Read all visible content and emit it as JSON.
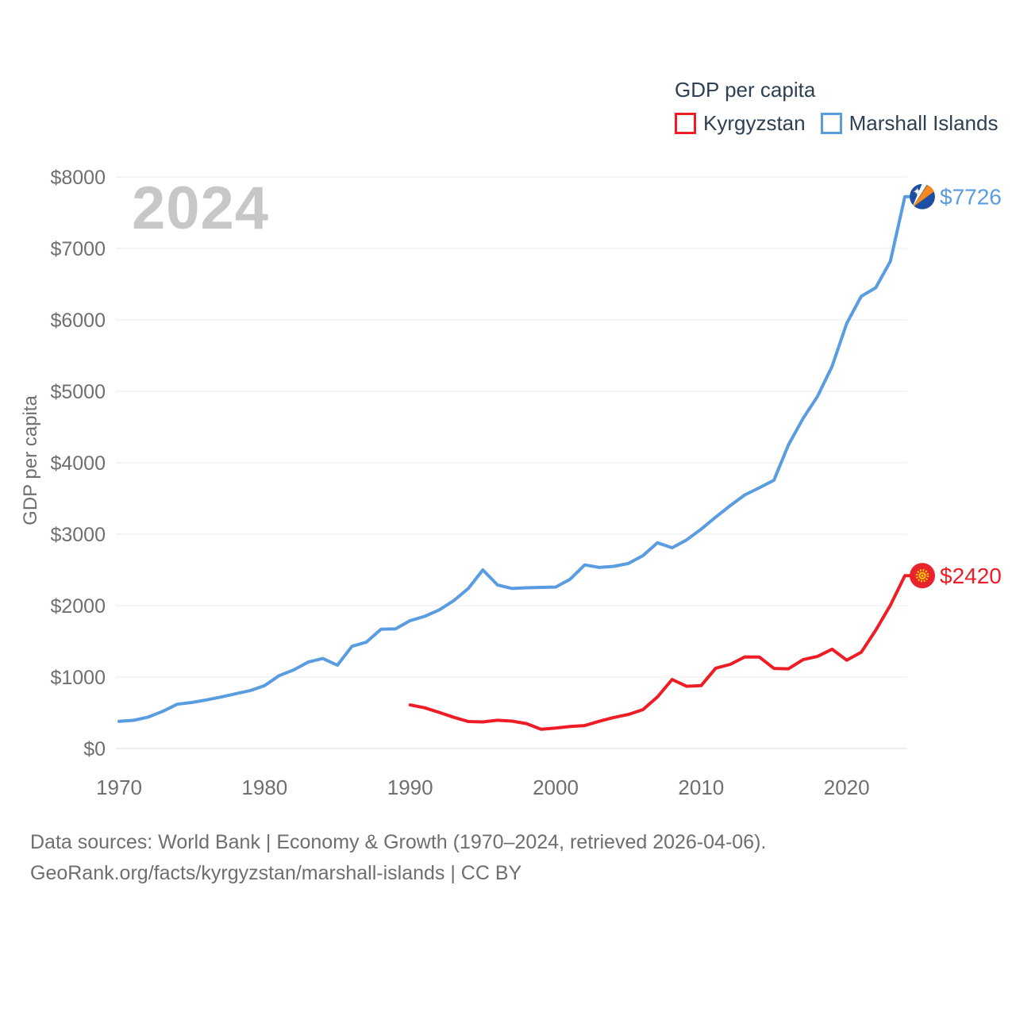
{
  "page": {
    "background": "#ffffff"
  },
  "legend": {
    "title": "GDP per capita",
    "items": [
      {
        "label": "Kyrgyzstan",
        "color": "#ee1c25"
      },
      {
        "label": "Marshall Islands",
        "color": "#5a9ce0"
      }
    ]
  },
  "watermark": "2024",
  "chart_data": {
    "type": "line",
    "title": "GDP per capita",
    "xlabel": "",
    "ylabel": "GDP per capita",
    "xlim": [
      1970,
      2024
    ],
    "ylim": [
      0,
      8000
    ],
    "grid": "horizontal",
    "legend_position": "top-right",
    "y_ticks": [
      {
        "value": 0,
        "label": "$0"
      },
      {
        "value": 1000,
        "label": "$1000"
      },
      {
        "value": 2000,
        "label": "$2000"
      },
      {
        "value": 3000,
        "label": "$3000"
      },
      {
        "value": 4000,
        "label": "$4000"
      },
      {
        "value": 5000,
        "label": "$5000"
      },
      {
        "value": 6000,
        "label": "$6000"
      },
      {
        "value": 7000,
        "label": "$7000"
      },
      {
        "value": 8000,
        "label": "$8000"
      }
    ],
    "x_ticks": [
      {
        "value": 1970,
        "label": "1970"
      },
      {
        "value": 1980,
        "label": "1980"
      },
      {
        "value": 1990,
        "label": "1990"
      },
      {
        "value": 2000,
        "label": "2000"
      },
      {
        "value": 2010,
        "label": "2010"
      },
      {
        "value": 2020,
        "label": "2020"
      }
    ],
    "series": [
      {
        "name": "Kyrgyzstan",
        "color": "#ee1c25",
        "end_label": "$2420",
        "end_value": 2420,
        "years": [
          1990,
          1991,
          1992,
          1993,
          1994,
          1995,
          1996,
          1997,
          1998,
          1999,
          2000,
          2001,
          2002,
          2003,
          2004,
          2005,
          2006,
          2007,
          2008,
          2009,
          2010,
          2011,
          2012,
          2013,
          2014,
          2015,
          2016,
          2017,
          2018,
          2019,
          2020,
          2021,
          2022,
          2023,
          2024
        ],
        "values": [
          610,
          570,
          505,
          437,
          378,
          372,
          396,
          383,
          349,
          270,
          287,
          308,
          321,
          381,
          434,
          477,
          545,
          722,
          966,
          871,
          880,
          1124,
          1178,
          1282,
          1280,
          1121,
          1115,
          1243,
          1290,
          1390,
          1237,
          1347,
          1655,
          2004,
          2420
        ]
      },
      {
        "name": "Marshall Islands",
        "color": "#5a9ce0",
        "end_label": "$7726",
        "end_value": 7726,
        "years": [
          1970,
          1971,
          1972,
          1973,
          1974,
          1975,
          1976,
          1977,
          1978,
          1979,
          1980,
          1981,
          1982,
          1983,
          1984,
          1985,
          1986,
          1987,
          1988,
          1989,
          1990,
          1991,
          1992,
          1993,
          1994,
          1995,
          1996,
          1997,
          1998,
          1999,
          2000,
          2001,
          2002,
          2003,
          2004,
          2005,
          2006,
          2007,
          2008,
          2009,
          2010,
          2011,
          2012,
          2013,
          2014,
          2015,
          2016,
          2017,
          2018,
          2019,
          2020,
          2021,
          2022,
          2023,
          2024
        ],
        "values": [
          380,
          395,
          440,
          520,
          620,
          645,
          680,
          720,
          765,
          810,
          880,
          1020,
          1100,
          1210,
          1260,
          1165,
          1430,
          1490,
          1670,
          1675,
          1790,
          1850,
          1940,
          2070,
          2240,
          2500,
          2290,
          2240,
          2250,
          2255,
          2260,
          2370,
          2570,
          2535,
          2550,
          2590,
          2700,
          2880,
          2810,
          2920,
          3070,
          3240,
          3400,
          3550,
          3650,
          3755,
          4250,
          4620,
          4930,
          5350,
          5950,
          6330,
          6450,
          6820,
          7726
        ]
      }
    ]
  },
  "footer": {
    "line1": "Data sources: World Bank | Economy & Growth (1970–2024, retrieved 2026-04-06).",
    "line2": "GeoRank.org/facts/kyrgyzstan/marshall-islands | CC BY"
  }
}
